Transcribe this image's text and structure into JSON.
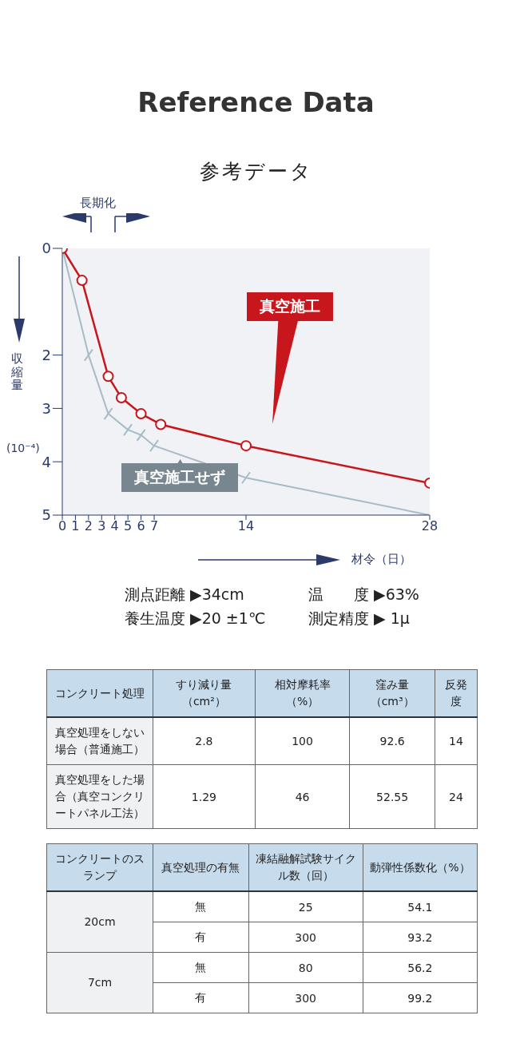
{
  "chart_data": [
    {
      "type": "line",
      "title": "Reference Data",
      "subtitle": "参考データ",
      "xlabel": "材令（日）",
      "ylabel": "収縮量",
      "xlim": [
        0,
        28
      ],
      "xticks": [
        0,
        1,
        2,
        3,
        4,
        5,
        6,
        7,
        14,
        28
      ],
      "ylim": [
        5,
        0
      ],
      "yticks": [
        0,
        2,
        3,
        4,
        5
      ],
      "grid": false,
      "legend": false,
      "series": [
        {
          "name": "真空施工",
          "color": "#c8161d",
          "marker": "circle",
          "x": [
            0,
            1.5,
            3.5,
            4.5,
            6,
            7.5,
            14,
            28
          ],
          "values": [
            0,
            0.6,
            2.4,
            2.8,
            3.1,
            3.3,
            3.7,
            4.4
          ]
        },
        {
          "name": "真空施工せず",
          "color": "#a6bcc6",
          "marker": "cross",
          "x": [
            0,
            2,
            3.5,
            5,
            6,
            7,
            14,
            28
          ],
          "values": [
            0,
            2,
            3.1,
            3.4,
            3.5,
            3.7,
            4.3,
            5
          ]
        }
      ],
      "annotations": [
        "長期化",
        "(10⁻⁴)",
        "測点距離 ▶34cm",
        "温　　度 ▶63%",
        "養生温度 ▶20 ±1℃",
        "測定精度 ▶ 1μ"
      ]
    },
    {
      "type": "other",
      "categories": [
        "コンクリート処理",
        "すり減り量（cm²）",
        "相対摩耗率（%）",
        "窪み量（cm³）",
        "反発度"
      ],
      "y_categories": [
        "真空処理をしない場合（普通施工）",
        "真空処理をした場合（真空コンクリートパネル工法）"
      ],
      "cell_labels": [
        [
          "2.8",
          "100",
          "92.6",
          "14"
        ],
        [
          "1.29",
          "46",
          "52.55",
          "24"
        ]
      ]
    },
    {
      "type": "other",
      "categories": [
        "コンクリートのスランプ",
        "真空処理の有無",
        "凍結融解試験サイクル数（回）",
        "動弾性係数化（%）"
      ],
      "y_categories": [
        "20cm",
        null,
        "7cm",
        null
      ],
      "y2_categories": [
        "無",
        "有",
        "無",
        "有"
      ],
      "cell_labels": [
        [
          "25",
          "54.1"
        ],
        [
          "300",
          "93.2"
        ],
        [
          "80",
          "56.2"
        ],
        [
          "300",
          "99.2"
        ]
      ]
    }
  ]
}
